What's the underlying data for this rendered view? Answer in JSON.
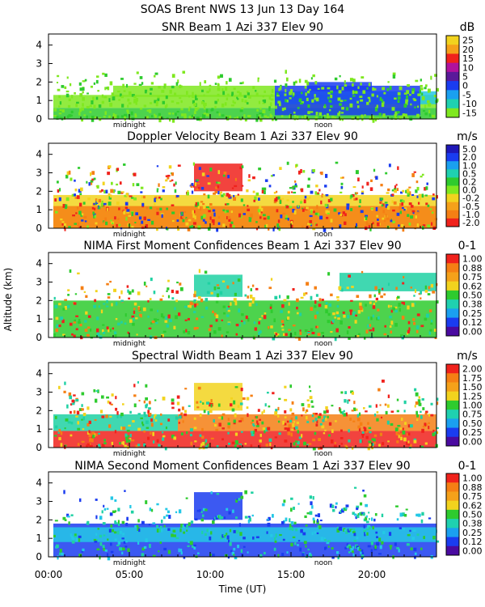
{
  "header": {
    "line1": "SOAS Brent NWS  13 Jun 13 Day 164"
  },
  "axes": {
    "ylabel": "Altitude (km)",
    "xlabel": "Time (UT)",
    "xticks": [
      "00:00",
      "05:00",
      "10:00",
      "15:00",
      "20:00"
    ],
    "yticks": [
      "0",
      "1",
      "2",
      "3",
      "4"
    ],
    "midnight_label": "midnight",
    "noon_label": "noon"
  },
  "colors": {
    "white": "#ffffff",
    "lime": "#7fe81f",
    "green": "#2ecb2e",
    "teal": "#1fd1a3",
    "cyan": "#24c8e6",
    "blue": "#1a3cf0",
    "navy": "#1f18b8",
    "purple": "#5a1a9a",
    "red": "#f0221c",
    "orange": "#f57f14",
    "yellow": "#f2d31e",
    "gold": "#f2b300",
    "darkpurple": "#4a0aa0"
  },
  "chart_data": [
    {
      "type": "heatmap",
      "title": "SNR Beam 1 Azi 337 Elev 90",
      "unit": "dB",
      "colorbar_ticks": [
        "25",
        "20",
        "15",
        "10",
        "5",
        "0",
        "-5",
        "-10",
        "-15"
      ],
      "colorbar_colors": [
        "#f2d31e",
        "#f5a11a",
        "#f0221c",
        "#b0129e",
        "#5a1a9a",
        "#1a3cf0",
        "#1aa0f0",
        "#1fd1b0",
        "#7fe81f"
      ],
      "xlim": [
        0,
        24
      ],
      "ylim": [
        0,
        4.6
      ],
      "regions": [
        {
          "x": [
            0.3,
            24
          ],
          "y": [
            0,
            0.6
          ],
          "color": "green"
        },
        {
          "x": [
            0.3,
            24
          ],
          "y": [
            0.6,
            1.3
          ],
          "color": "lime"
        },
        {
          "x": [
            4,
            14
          ],
          "y": [
            1.2,
            1.8
          ],
          "color": "lime"
        },
        {
          "x": [
            14,
            24
          ],
          "y": [
            0.8,
            1.5
          ],
          "color": "cyan"
        },
        {
          "x": [
            14,
            23
          ],
          "y": [
            0.2,
            1.8
          ],
          "color": "blue"
        },
        {
          "x": [
            16,
            20
          ],
          "y": [
            1.5,
            2.0
          ],
          "color": "blue"
        }
      ],
      "scatter_density": 0.6,
      "scatter_palette": [
        "lime",
        "green",
        "lime"
      ],
      "scatter_bounds": {
        "x": [
          0.3,
          24
        ],
        "y": [
          0,
          2.8
        ]
      }
    },
    {
      "type": "heatmap",
      "title": "Doppler Velocity Beam 1 Azi 337 Elev 90",
      "unit": "m/s",
      "colorbar_ticks": [
        "5.0",
        "2.0",
        "1.0",
        "0.5",
        "0.2",
        "0.0",
        "-0.2",
        "-0.5",
        "-1.0",
        "-2.0"
      ],
      "colorbar_colors": [
        "#1f18b8",
        "#1a3cf0",
        "#1aa0f0",
        "#1fd1b0",
        "#2ecb2e",
        "#7fe81f",
        "#f2d31e",
        "#f5a11a",
        "#f57f14",
        "#f0221c"
      ],
      "xlim": [
        0,
        24
      ],
      "ylim": [
        0,
        4.6
      ],
      "regions": [
        {
          "x": [
            0.3,
            24
          ],
          "y": [
            0,
            1.8
          ],
          "color": "yellow"
        },
        {
          "x": [
            0.3,
            24
          ],
          "y": [
            0,
            1.2
          ],
          "color": "orange"
        },
        {
          "x": [
            9,
            12
          ],
          "y": [
            2.0,
            3.5
          ],
          "color": "red"
        }
      ],
      "scatter_density": 0.7,
      "scatter_palette": [
        "yellow",
        "orange",
        "red",
        "green",
        "lime",
        "blue"
      ],
      "scatter_bounds": {
        "x": [
          0.3,
          24
        ],
        "y": [
          0,
          3.8
        ]
      }
    },
    {
      "type": "heatmap",
      "title": "NIMA First Moment Confidences Beam 1 Azi 337 Elev 90",
      "unit": "0-1",
      "colorbar_ticks": [
        "1.00",
        "0.88",
        "0.75",
        "0.62",
        "0.50",
        "0.38",
        "0.25",
        "0.12",
        "0.00"
      ],
      "colorbar_colors": [
        "#f0221c",
        "#f57f14",
        "#f5a11a",
        "#f2d31e",
        "#2ecb2e",
        "#1fd1b0",
        "#1aa0f0",
        "#1a3cf0",
        "#4a0aa0"
      ],
      "xlim": [
        0,
        24
      ],
      "ylim": [
        0,
        4.6
      ],
      "regions": [
        {
          "x": [
            0.3,
            24
          ],
          "y": [
            0,
            2.0
          ],
          "color": "green"
        },
        {
          "x": [
            9,
            12
          ],
          "y": [
            2.2,
            3.4
          ],
          "color": "teal"
        },
        {
          "x": [
            18,
            24
          ],
          "y": [
            2.5,
            3.5
          ],
          "color": "teal"
        }
      ],
      "scatter_density": 0.5,
      "scatter_palette": [
        "green",
        "teal",
        "orange",
        "red",
        "yellow"
      ],
      "scatter_bounds": {
        "x": [
          0.3,
          24
        ],
        "y": [
          0,
          3.8
        ]
      }
    },
    {
      "type": "heatmap",
      "title": "Spectral Width Beam 1 Azi 337 Elev 90",
      "unit": "m/s",
      "colorbar_ticks": [
        "2.00",
        "1.75",
        "1.50",
        "1.25",
        "1.00",
        "0.75",
        "0.50",
        "0.25",
        "0.00"
      ],
      "colorbar_colors": [
        "#f0221c",
        "#f57f14",
        "#f5a11a",
        "#f2d31e",
        "#2ecb2e",
        "#1fd1b0",
        "#1aa0f0",
        "#1a3cf0",
        "#4a0aa0"
      ],
      "xlim": [
        0,
        24
      ],
      "ylim": [
        0,
        4.6
      ],
      "regions": [
        {
          "x": [
            0.3,
            24
          ],
          "y": [
            0,
            0.9
          ],
          "color": "red"
        },
        {
          "x": [
            0.3,
            8
          ],
          "y": [
            0.9,
            1.8
          ],
          "color": "teal"
        },
        {
          "x": [
            8,
            24
          ],
          "y": [
            0.9,
            1.8
          ],
          "color": "orange"
        },
        {
          "x": [
            9,
            12
          ],
          "y": [
            2.0,
            3.5
          ],
          "color": "yellow"
        }
      ],
      "scatter_density": 0.6,
      "scatter_palette": [
        "red",
        "orange",
        "yellow",
        "green",
        "teal"
      ],
      "scatter_bounds": {
        "x": [
          0.3,
          24
        ],
        "y": [
          0,
          3.8
        ]
      }
    },
    {
      "type": "heatmap",
      "title": "NIMA Second Moment Confidences Beam 1 Azi 337 Elev 90",
      "unit": "0-1",
      "colorbar_ticks": [
        "1.00",
        "0.88",
        "0.75",
        "0.62",
        "0.50",
        "0.38",
        "0.25",
        "0.12",
        "0.00"
      ],
      "colorbar_colors": [
        "#f0221c",
        "#f57f14",
        "#f5a11a",
        "#f2d31e",
        "#2ecb2e",
        "#1fd1b0",
        "#1aa0f0",
        "#1a3cf0",
        "#4a0aa0"
      ],
      "xlim": [
        0,
        24
      ],
      "ylim": [
        0,
        4.6
      ],
      "regions": [
        {
          "x": [
            0.3,
            24
          ],
          "y": [
            0,
            1.8
          ],
          "color": "blue"
        },
        {
          "x": [
            0.3,
            24
          ],
          "y": [
            0.8,
            1.6
          ],
          "color": "cyan"
        },
        {
          "x": [
            9,
            12
          ],
          "y": [
            2.0,
            3.5
          ],
          "color": "blue"
        }
      ],
      "scatter_density": 0.5,
      "scatter_palette": [
        "blue",
        "cyan",
        "teal",
        "green"
      ],
      "scatter_bounds": {
        "x": [
          0.3,
          24
        ],
        "y": [
          0,
          3.8
        ]
      }
    }
  ]
}
